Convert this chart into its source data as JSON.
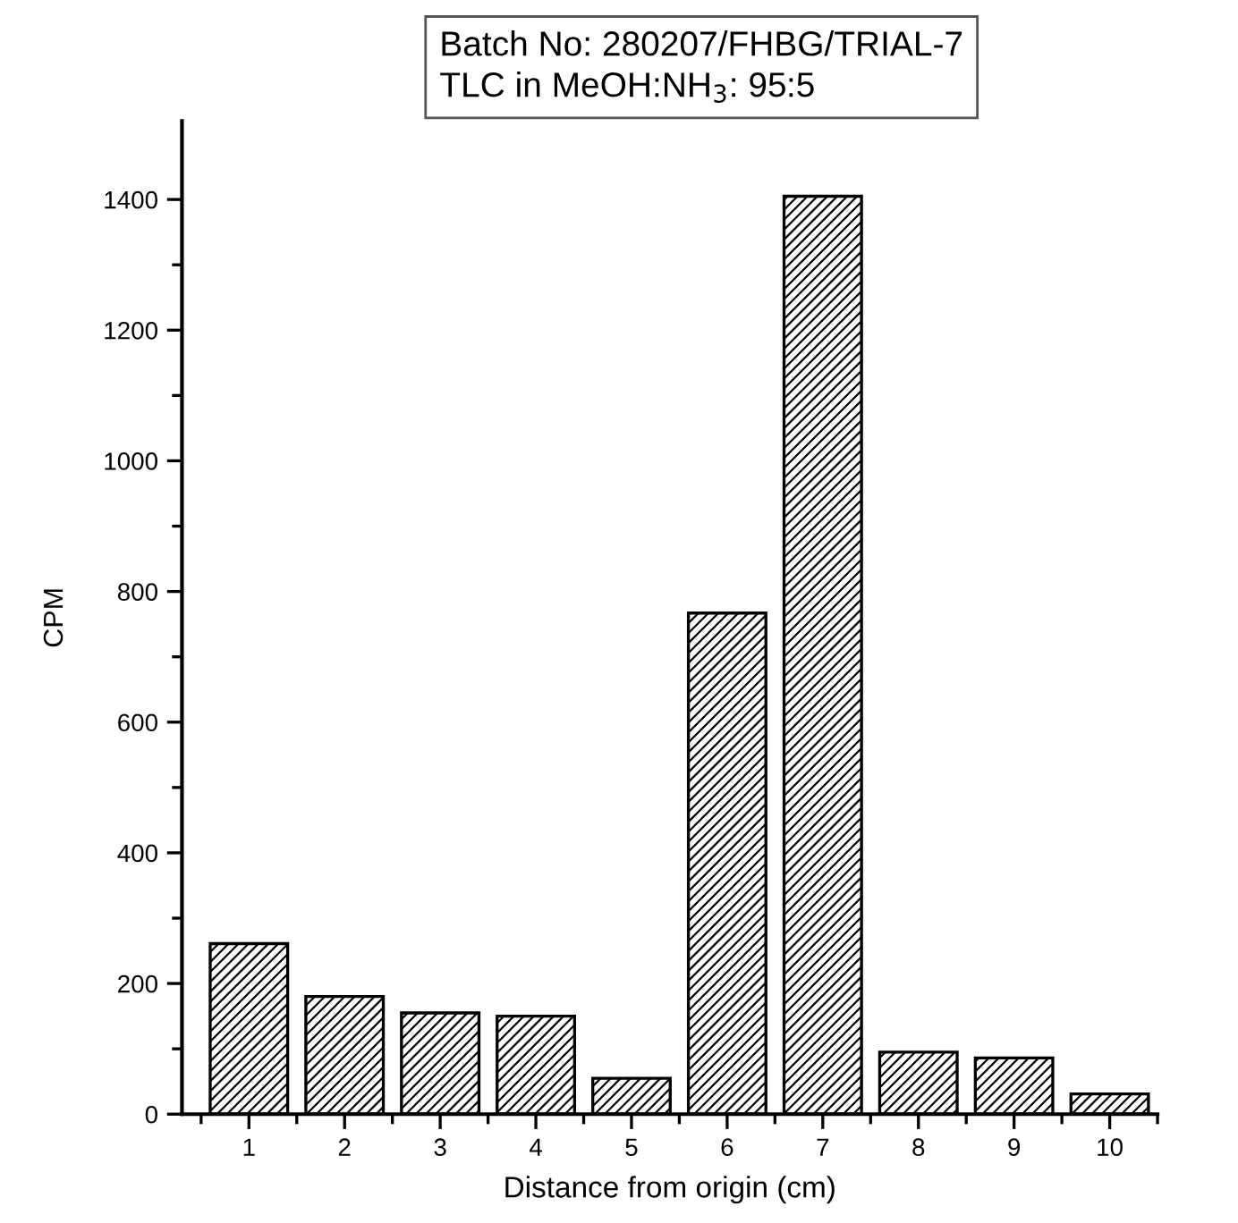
{
  "chart_data": {
    "type": "bar",
    "annotations": [
      "Batch No: 280207/FHBG/TRIAL-7",
      "TLC in MeOH:NH$_{3}$: 95:5"
    ],
    "xlabel": "Distance from origin (cm)",
    "ylabel": "CPM",
    "categories": [
      "1",
      "2",
      "3",
      "4",
      "5",
      "6",
      "7",
      "8",
      "9",
      "10"
    ],
    "values": [
      261,
      180,
      155,
      150,
      55,
      767,
      1405,
      95,
      86,
      31
    ],
    "color": "#000000",
    "ylim": [
      0,
      1520
    ],
    "yticks": [
      0,
      {
        "value": 100,
        "label": null
      },
      200,
      {
        "value": 300,
        "label": null
      },
      400,
      {
        "value": 500,
        "label": null
      },
      600,
      {
        "value": 700,
        "label": null
      },
      800,
      {
        "value": 900,
        "label": null
      },
      1000,
      {
        "value": 1100,
        "label": null
      },
      1200,
      {
        "value": 1300,
        "label": null
      },
      1400
    ],
    "grid": false,
    "legend": false
  }
}
